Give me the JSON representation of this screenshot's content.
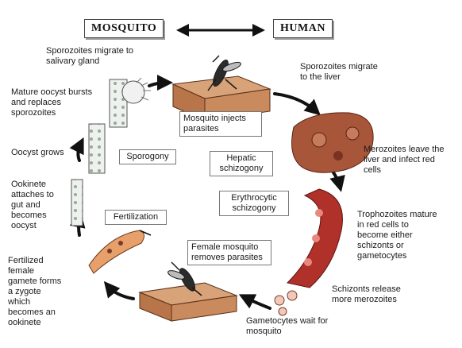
{
  "header": {
    "left": "MOSQUITO",
    "right": "HUMAN",
    "arrow_icon": "double-headed-arrow-icon"
  },
  "stages": {
    "sporozoites_salivary": "Sporozoites migrate to\nsalivary gland",
    "sporozoites_liver": "Sporozoites migrate\nto the liver",
    "mature_oocyst": "Mature oocyst bursts\nand replaces\nsporozoites",
    "mosquito_injects": "Mosquito injects\nparasites",
    "oocyst_grows": "Oocyst grows",
    "sporogony": "Sporogony",
    "hepatic": "Hepatic\nschizogony",
    "merozoites_leave": "Merozoites leave the\nliver and infect red\ncells",
    "ookinete": "Ookinete\nattaches to\ngut and\nbecomes\noocyst",
    "erythrocytic": "Erythrocytic\nschizogony",
    "fertilization": "Fertilization",
    "trophozoites": "Trophozoites mature\nin red cells to\nbecome either\nschizonts or\ngametocytes",
    "fertilized": "Fertilized\nfemale\ngamete forms\na zygote\nwhich\nbecomes an\nookinete",
    "female_mosquito": "Female mosquito\nremoves parasites",
    "schizonts": "Schizonts release\nmore merozoites",
    "gametocytes": "Gametocytes wait for\nmosquito"
  },
  "colors": {
    "arrow": "#111111",
    "skin": "#c98a5e",
    "liver": "#a8563a",
    "vessel": "#b0302a",
    "cell": "#dfe7e1"
  }
}
